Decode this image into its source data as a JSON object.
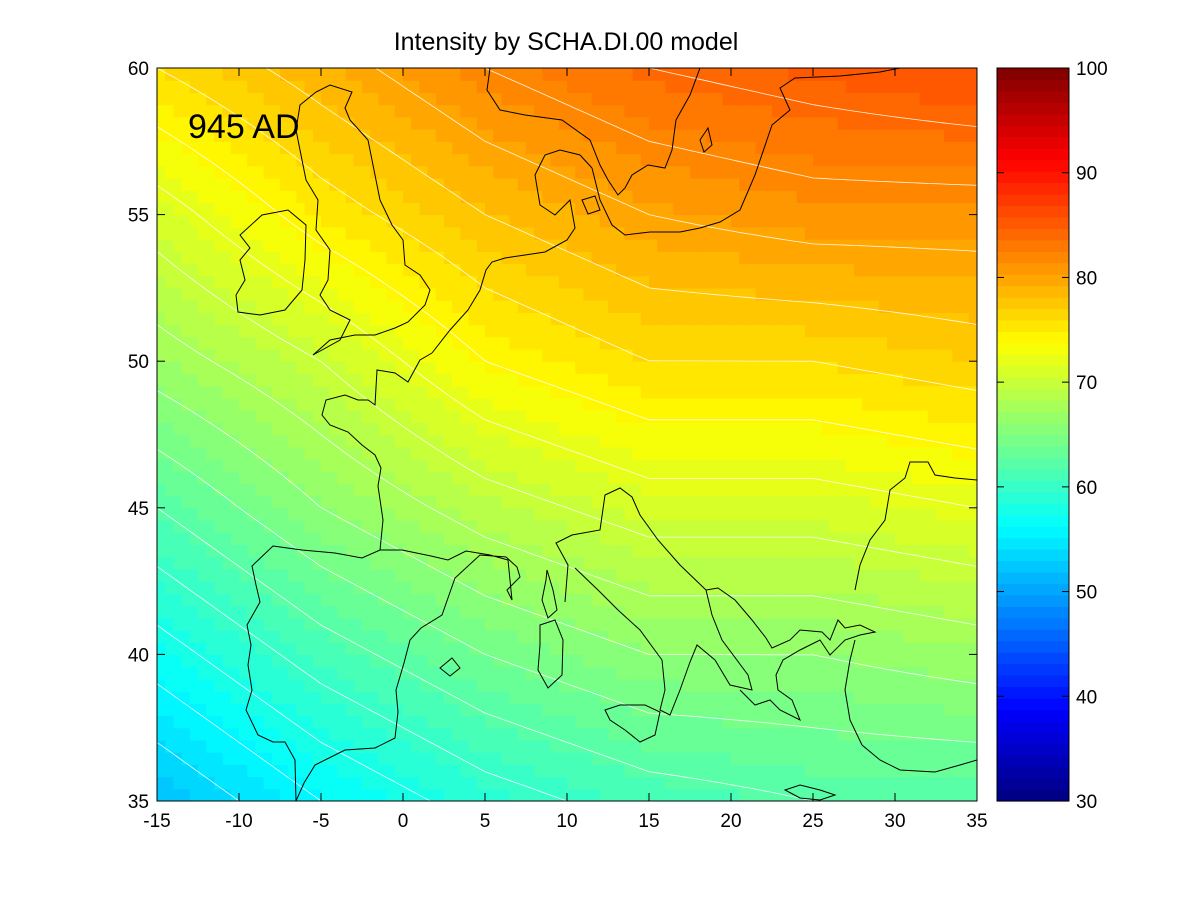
{
  "chart_data": {
    "type": "heatmap",
    "subtype": "filled contour map",
    "title": "Intensity by SCHA.DI.00 model",
    "annotation": "945 AD",
    "xlabel": "",
    "ylabel": "",
    "xlim": [
      -15,
      35
    ],
    "ylim": [
      35,
      60
    ],
    "x_ticks": [
      "-15",
      "-10",
      "-5",
      "0",
      "5",
      "10",
      "15",
      "20",
      "25",
      "30",
      "35"
    ],
    "y_ticks": [
      "35",
      "40",
      "45",
      "50",
      "55",
      "60"
    ],
    "grid": false,
    "colormap": "jet",
    "colorbar": {
      "position": "right",
      "range": [
        30,
        100
      ],
      "ticks": [
        "30",
        "40",
        "50",
        "60",
        "70",
        "80",
        "90",
        "100"
      ]
    },
    "contour_line_color": "#ffffff",
    "coastline_color": "#000000",
    "field_samples": {
      "lon": [
        -15,
        -5,
        5,
        15,
        25,
        35
      ],
      "lat": [
        35,
        40,
        45,
        50,
        55,
        60
      ],
      "values": [
        [
          52,
          56,
          59,
          61,
          62,
          62
        ],
        [
          57,
          61,
          64,
          66,
          66,
          67
        ],
        [
          62,
          66,
          69,
          71,
          71,
          72
        ],
        [
          67,
          70,
          74,
          76,
          76,
          77
        ],
        [
          71,
          75,
          78,
          80,
          81,
          81
        ],
        [
          76,
          79,
          82,
          84,
          85,
          86
        ]
      ]
    }
  }
}
